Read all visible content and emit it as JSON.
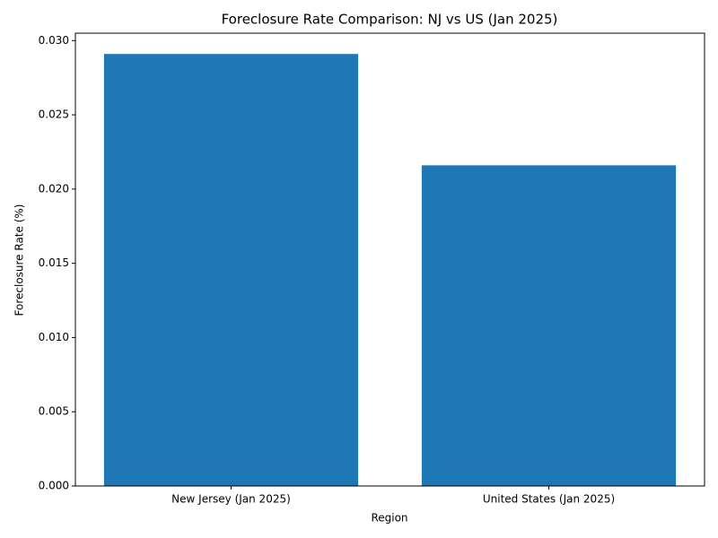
{
  "chart_data": {
    "type": "bar",
    "title": "Foreclosure Rate Comparison: NJ vs US (Jan 2025)",
    "x_label": "Region",
    "y_label": "Foreclosure Rate (%)",
    "categories": [
      "New Jersey (Jan 2025)",
      "United States (Jan 2025)"
    ],
    "values": [
      0.0291,
      0.0216
    ],
    "color": "#1f77b4",
    "ylim": [
      0,
      0.0305
    ],
    "yticks": [
      {
        "value": 0,
        "label": "0.000"
      },
      {
        "value": 0.005,
        "label": "0.005"
      },
      {
        "value": 0.01,
        "label": "0.010"
      },
      {
        "value": 0.015,
        "label": "0.015"
      },
      {
        "value": 0.02,
        "label": "0.020"
      },
      {
        "value": 0.025,
        "label": "0.025"
      },
      {
        "value": 0.03,
        "label": "0.030"
      }
    ],
    "grid": false
  }
}
